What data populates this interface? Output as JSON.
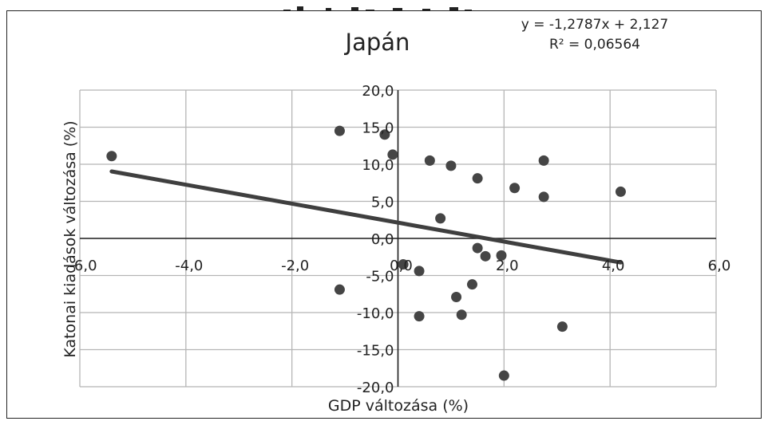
{
  "chart_data": {
    "type": "scatter",
    "title": "Japán",
    "xlabel": "GDP változása (%)",
    "ylabel": "Katonai kiadások változása (%)",
    "xlim": [
      -6,
      6
    ],
    "ylim": [
      -20,
      20
    ],
    "xticks": [
      -6,
      -4,
      -2,
      0,
      2,
      4,
      6
    ],
    "yticks": [
      -20,
      -15,
      -10,
      -5,
      0,
      5,
      10,
      15,
      20
    ],
    "xtick_labels": [
      "-6,0",
      "-4,0",
      "-2,0",
      "0,0",
      "2,0",
      "4,0",
      "6,0"
    ],
    "ytick_labels": [
      "-20,0",
      "-15,0",
      "-10,0",
      "-5,0",
      "0,0",
      "5,0",
      "10,0",
      "15,0",
      "20,0"
    ],
    "grid": true,
    "trendline": {
      "slope": -1.2787,
      "intercept": 2.127,
      "x_range": [
        -5.4,
        4.2
      ],
      "equation_label": "y = -1,2787x + 2,127",
      "r2_label": "R² = 0,06564"
    },
    "points": [
      {
        "x": -5.4,
        "y": 11.1
      },
      {
        "x": -1.1,
        "y": 14.5
      },
      {
        "x": -0.25,
        "y": 14.0
      },
      {
        "x": -0.1,
        "y": 11.3
      },
      {
        "x": 0.6,
        "y": 10.5
      },
      {
        "x": 1.0,
        "y": 9.8
      },
      {
        "x": 1.5,
        "y": 8.1
      },
      {
        "x": 2.2,
        "y": 6.8
      },
      {
        "x": 2.75,
        "y": 10.5
      },
      {
        "x": 2.75,
        "y": 5.6
      },
      {
        "x": 4.2,
        "y": 6.3
      },
      {
        "x": 0.8,
        "y": 2.7
      },
      {
        "x": 1.5,
        "y": -1.3
      },
      {
        "x": 1.65,
        "y": -2.4
      },
      {
        "x": 1.95,
        "y": -2.3
      },
      {
        "x": 0.1,
        "y": -3.5
      },
      {
        "x": 0.4,
        "y": -4.4
      },
      {
        "x": 1.4,
        "y": -6.2
      },
      {
        "x": 1.1,
        "y": -7.9
      },
      {
        "x": -1.1,
        "y": -6.9
      },
      {
        "x": 0.4,
        "y": -10.5
      },
      {
        "x": 1.2,
        "y": -10.3
      },
      {
        "x": 3.1,
        "y": -11.9
      },
      {
        "x": 2.0,
        "y": -18.5
      }
    ]
  },
  "colors": {
    "marker": "#454545",
    "trendline": "#3f3f3f",
    "grid": "#b5b5b5",
    "axis": "#222222",
    "frame": "#222222"
  }
}
